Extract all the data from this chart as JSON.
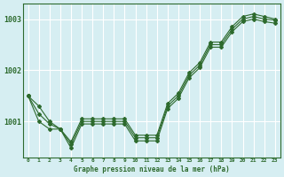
{
  "xlabel": "Graphe pression niveau de la mer (hPa)",
  "background_color": "#d6eef2",
  "plot_bg_color": "#d6eef2",
  "grid_color": "#ffffff",
  "line_color": "#2d6a2d",
  "s1": [
    1001.5,
    1001.3,
    1001.0,
    1000.85,
    1000.6,
    1001.05,
    1001.05,
    1001.05,
    1001.05,
    1001.05,
    1000.73,
    1000.73,
    1000.73,
    1001.35,
    1001.55,
    1001.95,
    1002.15,
    1002.55,
    1002.55,
    1002.85,
    1003.05,
    1003.1,
    1003.05,
    1003.0
  ],
  "s2": [
    1001.5,
    1001.15,
    1000.95,
    1000.85,
    1000.55,
    1001.0,
    1001.0,
    1001.0,
    1001.0,
    1001.0,
    1000.68,
    1000.68,
    1000.68,
    1001.3,
    1001.5,
    1001.9,
    1002.1,
    1002.5,
    1002.5,
    1002.8,
    1003.0,
    1003.05,
    1003.0,
    1002.98
  ],
  "s3": [
    1001.5,
    1001.0,
    1000.85,
    1000.85,
    1000.48,
    1000.95,
    1000.95,
    1000.95,
    1000.95,
    1000.95,
    1000.62,
    1000.62,
    1000.62,
    1001.25,
    1001.45,
    1001.85,
    1002.05,
    1002.45,
    1002.45,
    1002.75,
    1002.95,
    1003.0,
    1002.95,
    1002.92
  ],
  "x_labels": [
    "0",
    "1",
    "2",
    "3",
    "4",
    "5",
    "6",
    "7",
    "8",
    "9",
    "10",
    "11",
    "12",
    "13",
    "14",
    "15",
    "16",
    "17",
    "18",
    "19",
    "20",
    "21",
    "22",
    "23"
  ],
  "yticks": [
    1001.0,
    1002.0,
    1003.0
  ],
  "ylim": [
    1000.3,
    1003.3
  ],
  "xlim": [
    -0.5,
    23.5
  ]
}
